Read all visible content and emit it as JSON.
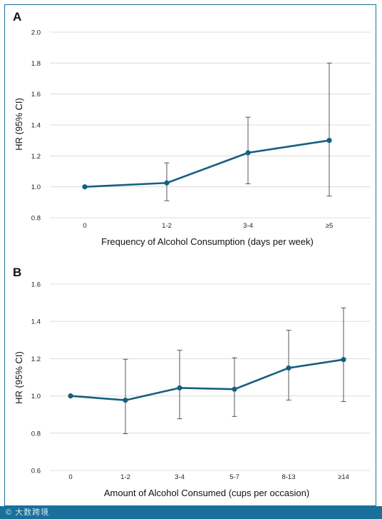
{
  "chart_data": [
    {
      "panel": "A",
      "type": "line",
      "categories": [
        "0",
        "1-2",
        "3-4",
        "≥5"
      ],
      "values": [
        1.0,
        1.025,
        1.22,
        1.3
      ],
      "ci_lower": [
        1.0,
        0.91,
        1.02,
        0.94
      ],
      "ci_upper": [
        1.0,
        1.155,
        1.45,
        1.8
      ],
      "xlabel": "Frequency of Alcohol Consumption (days per week)",
      "ylabel": "HR (95% CI)",
      "ylim": [
        0.8,
        2.0
      ],
      "yticks": [
        "0.8",
        "1.0",
        "1.2",
        "1.4",
        "1.6",
        "1.8",
        "2.0"
      ],
      "grid": true
    },
    {
      "panel": "B",
      "type": "line",
      "categories": [
        "0",
        "1-2",
        "3-4",
        "5-7",
        "8-13",
        "≥14"
      ],
      "values": [
        1.0,
        0.977,
        1.043,
        1.036,
        1.15,
        1.195
      ],
      "ci_lower": [
        1.0,
        0.797,
        0.877,
        0.89,
        0.978,
        0.97
      ],
      "ci_upper": [
        1.0,
        1.197,
        1.245,
        1.205,
        1.353,
        1.473
      ],
      "xlabel": "Amount of Alcohol Consumed (cups per occasion)",
      "ylabel": "HR (95% CI)",
      "ylim": [
        0.6,
        1.6
      ],
      "yticks": [
        "0.6",
        "0.8",
        "1.0",
        "1.2",
        "1.4",
        "1.6"
      ],
      "grid": true
    }
  ],
  "colors": {
    "series": "#15607e",
    "frame": "#1b6f9b",
    "grid": "#dcdcdc"
  },
  "watermark": "大数跨境"
}
